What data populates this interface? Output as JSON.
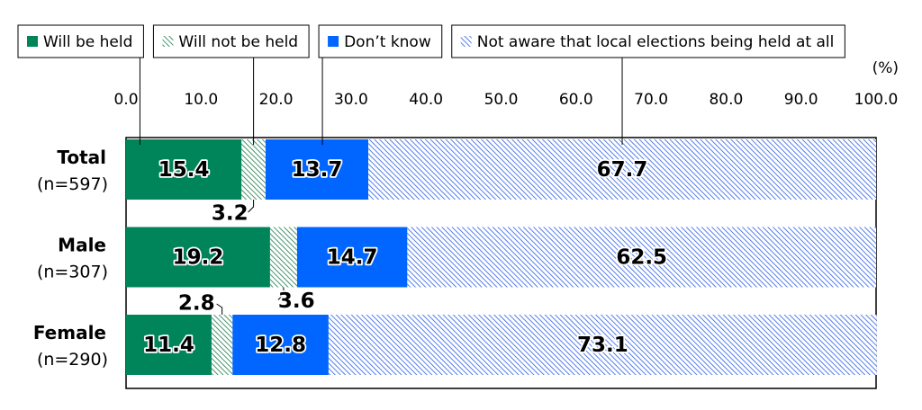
{
  "chart_data": {
    "type": "stacked-bar-horizontal",
    "categories": [
      "Total",
      "Male",
      "Female"
    ],
    "sample_sizes": [
      "(n=597)",
      "(n=307)",
      "(n=290)"
    ],
    "series": [
      {
        "name": "Will be held",
        "color": "#00855a",
        "hatch": false,
        "values": [
          15.4,
          19.2,
          11.4
        ]
      },
      {
        "name": "Will not be held",
        "color": "#1a7a4a",
        "hatch": true,
        "values": [
          3.2,
          3.6,
          2.8
        ]
      },
      {
        "name": "Don’t know",
        "color": "#0066ff",
        "hatch": false,
        "values": [
          13.7,
          14.7,
          12.8
        ]
      },
      {
        "name": "Not aware that local elections being held at all",
        "color": "#2a5ee8",
        "hatch": true,
        "values": [
          67.7,
          62.5,
          73.1
        ]
      }
    ],
    "x_unit": "(%)",
    "xlim": [
      0,
      100
    ],
    "xticks": [
      {
        "value": 0,
        "label": "0.0"
      },
      {
        "value": 10,
        "label": "10.0"
      },
      {
        "value": 20,
        "label": "20.0"
      },
      {
        "value": 30,
        "label": "30.0"
      },
      {
        "value": 40,
        "label": "40.0"
      },
      {
        "value": 50,
        "label": "50.0"
      },
      {
        "value": 60,
        "label": "60.0"
      },
      {
        "value": 70,
        "label": "70.0"
      },
      {
        "value": 80,
        "label": "80.0"
      },
      {
        "value": 90,
        "label": "90.0"
      },
      {
        "value": 100,
        "label": "100.0"
      }
    ],
    "legend": "top"
  }
}
